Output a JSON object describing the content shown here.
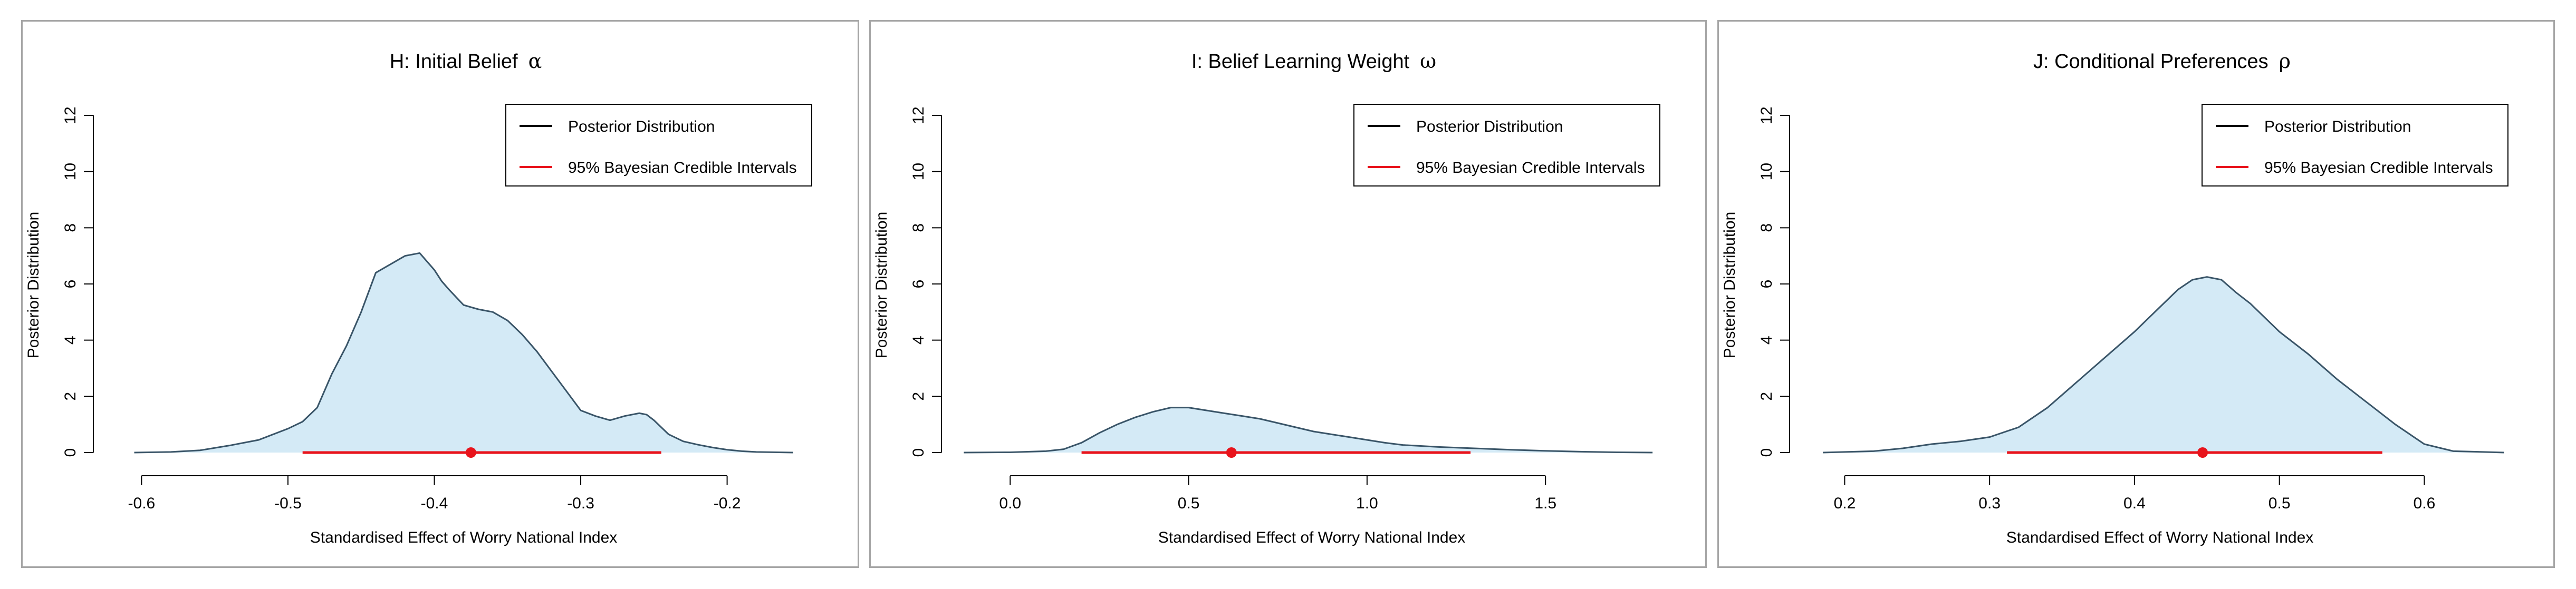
{
  "chart_data": [
    {
      "type": "area",
      "title": "H: Initial Belief",
      "title_symbol": "α",
      "xlabel": "Standardised Effect of Worry National Index",
      "ylabel": "Posterior Distribution",
      "xlim": [
        -0.625,
        -0.135
      ],
      "ylim": [
        0,
        12
      ],
      "x_ticks": [
        -0.6,
        -0.5,
        -0.4,
        -0.3,
        -0.2
      ],
      "x_tick_labels": [
        "-0.6",
        "-0.5",
        "-0.4",
        "-0.3",
        "-0.2"
      ],
      "y_ticks": [
        0,
        2,
        4,
        6,
        8,
        10,
        12
      ],
      "y_tick_labels": [
        "0",
        "2",
        "4",
        "6",
        "8",
        "10",
        "12"
      ],
      "legend": {
        "position": "top-right",
        "entries": [
          {
            "label": "Posterior Distribution",
            "color": "#000000"
          },
          {
            "label": "95% Bayesian Credible Intervals",
            "color": "#e8141c"
          }
        ]
      },
      "fill_color": "#d4eaf6",
      "line_color": "#3a5568",
      "series": [
        {
          "x": [
            -0.605,
            -0.58,
            -0.56,
            -0.54,
            -0.52,
            -0.5,
            -0.49,
            -0.48,
            -0.47,
            -0.46,
            -0.45,
            -0.44,
            -0.43,
            -0.42,
            -0.41,
            -0.4,
            -0.395,
            -0.39,
            -0.38,
            -0.37,
            -0.36,
            -0.35,
            -0.34,
            -0.33,
            -0.32,
            -0.31,
            -0.3,
            -0.29,
            -0.28,
            -0.27,
            -0.26,
            -0.255,
            -0.25,
            -0.24,
            -0.23,
            -0.22,
            -0.21,
            -0.2,
            -0.19,
            -0.18,
            -0.155
          ],
          "y": [
            0.0,
            0.02,
            0.08,
            0.25,
            0.45,
            0.85,
            1.1,
            1.6,
            2.8,
            3.8,
            5.0,
            6.4,
            6.7,
            7.0,
            7.1,
            6.5,
            6.1,
            5.8,
            5.25,
            5.1,
            5.0,
            4.7,
            4.2,
            3.6,
            2.9,
            2.2,
            1.5,
            1.3,
            1.15,
            1.3,
            1.4,
            1.35,
            1.15,
            0.65,
            0.4,
            0.28,
            0.18,
            0.1,
            0.05,
            0.02,
            0.0
          ]
        }
      ],
      "credible_interval": {
        "low": -0.49,
        "high": -0.245,
        "point": -0.375
      }
    },
    {
      "type": "area",
      "title": "I: Belief Learning Weight",
      "title_symbol": "ω",
      "xlabel": "Standardised Effect of Worry National Index",
      "ylabel": "Posterior Distribution",
      "xlim": [
        -0.16,
        1.85
      ],
      "ylim": [
        0,
        12
      ],
      "x_ticks": [
        0.0,
        0.5,
        1.0,
        1.5
      ],
      "x_tick_labels": [
        "0.0",
        "0.5",
        "1.0",
        "1.5"
      ],
      "y_ticks": [
        0,
        2,
        4,
        6,
        8,
        10,
        12
      ],
      "y_tick_labels": [
        "0",
        "2",
        "4",
        "6",
        "8",
        "10",
        "12"
      ],
      "legend": {
        "position": "top-right",
        "entries": [
          {
            "label": "Posterior Distribution",
            "color": "#000000"
          },
          {
            "label": "95% Bayesian Credible Intervals",
            "color": "#e8141c"
          }
        ]
      },
      "fill_color": "#d4eaf6",
      "line_color": "#3a5568",
      "series": [
        {
          "x": [
            -0.13,
            0.0,
            0.1,
            0.15,
            0.2,
            0.25,
            0.3,
            0.35,
            0.4,
            0.45,
            0.5,
            0.55,
            0.6,
            0.65,
            0.7,
            0.75,
            0.8,
            0.85,
            0.9,
            0.95,
            1.0,
            1.05,
            1.1,
            1.2,
            1.3,
            1.4,
            1.5,
            1.6,
            1.7,
            1.8
          ],
          "y": [
            0.0,
            0.01,
            0.05,
            0.12,
            0.35,
            0.7,
            1.0,
            1.25,
            1.45,
            1.6,
            1.6,
            1.5,
            1.4,
            1.3,
            1.2,
            1.05,
            0.9,
            0.75,
            0.65,
            0.55,
            0.45,
            0.35,
            0.27,
            0.2,
            0.15,
            0.1,
            0.06,
            0.03,
            0.01,
            0.0
          ]
        }
      ],
      "credible_interval": {
        "low": 0.2,
        "high": 1.29,
        "point": 0.62
      }
    },
    {
      "type": "area",
      "title": "J: Conditional Preferences",
      "title_symbol": "ρ",
      "xlabel": "Standardised Effect of Worry National Index",
      "ylabel": "Posterior Distribution",
      "xlim": [
        0.17,
        0.665
      ],
      "ylim": [
        0,
        12
      ],
      "x_ticks": [
        0.2,
        0.3,
        0.4,
        0.5,
        0.6
      ],
      "x_tick_labels": [
        "0.2",
        "0.3",
        "0.4",
        "0.5",
        "0.6"
      ],
      "y_ticks": [
        0,
        2,
        4,
        6,
        8,
        10,
        12
      ],
      "y_tick_labels": [
        "0",
        "2",
        "4",
        "6",
        "8",
        "10",
        "12"
      ],
      "legend": {
        "position": "top-right",
        "entries": [
          {
            "label": "Posterior Distribution",
            "color": "#000000"
          },
          {
            "label": "95% Bayesian Credible Intervals",
            "color": "#e8141c"
          }
        ]
      },
      "fill_color": "#d4eaf6",
      "line_color": "#3a5568",
      "series": [
        {
          "x": [
            0.185,
            0.22,
            0.24,
            0.26,
            0.28,
            0.3,
            0.32,
            0.34,
            0.36,
            0.38,
            0.4,
            0.42,
            0.43,
            0.44,
            0.45,
            0.46,
            0.47,
            0.48,
            0.5,
            0.52,
            0.54,
            0.56,
            0.58,
            0.6,
            0.62,
            0.655
          ],
          "y": [
            0.0,
            0.05,
            0.15,
            0.3,
            0.4,
            0.55,
            0.9,
            1.6,
            2.5,
            3.4,
            4.3,
            5.3,
            5.8,
            6.15,
            6.25,
            6.15,
            5.7,
            5.3,
            4.3,
            3.5,
            2.6,
            1.8,
            1.0,
            0.3,
            0.05,
            0.0
          ]
        }
      ],
      "credible_interval": {
        "low": 0.312,
        "high": 0.571,
        "point": 0.447
      }
    }
  ]
}
